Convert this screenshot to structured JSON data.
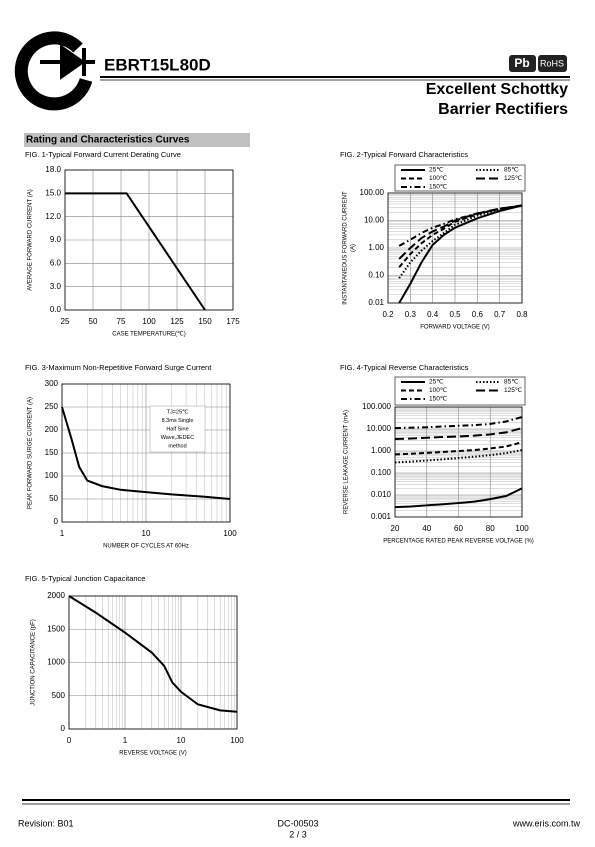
{
  "header": {
    "part_number": "EBRT15L80D",
    "badges": [
      "Pb",
      "RoHS"
    ],
    "title_lines": [
      "Excellent Schottky",
      "Barrier Rectifiers"
    ],
    "section": "Rating and Characteristics Curves"
  },
  "chart_data": [
    {
      "type": "line",
      "title": "FIG. 1-Typical Forward Current Derating Curve",
      "x_label": "CASE TEMPERATURE(℃)",
      "y_label": [
        "AVERAGE FORWARD CURRENT (A)"
      ],
      "grid": true,
      "x": [
        25,
        80,
        150
      ],
      "series": [
        {
          "color": "#000000",
          "dash": "solid",
          "values": [
            15,
            15,
            0
          ]
        }
      ],
      "xlim": [
        25,
        175
      ],
      "xticks": [
        25,
        50,
        75,
        100,
        125,
        150,
        175
      ],
      "ylim": [
        0,
        18
      ],
      "yticks": [
        {
          "value": 0,
          "label": "0.0"
        },
        {
          "value": 3,
          "label": "3.0"
        },
        {
          "value": 6,
          "label": "6.0"
        },
        {
          "value": 9,
          "label": "9.0"
        },
        {
          "value": 12,
          "label": "12.0"
        },
        {
          "value": 15,
          "label": "15.0"
        },
        {
          "value": 18,
          "label": "18.0"
        }
      ]
    },
    {
      "type": "line",
      "title": "FIG. 2-Typical Forward Characteristics",
      "x_label": "FORWARD VOLTAGE (V)",
      "y_label": [
        "INSTANTANEOUS FORWARD CURRENT",
        "(A)"
      ],
      "grid": true,
      "y_log": true,
      "legend": "top",
      "x": [
        0.25,
        0.3,
        0.35,
        0.4,
        0.45,
        0.5,
        0.6,
        0.7,
        0.8
      ],
      "series": [
        {
          "name": "25℃",
          "color": "#000000",
          "dash": "solid",
          "values": [
            0.01,
            0.05,
            0.3,
            1.3,
            3,
            5.5,
            12,
            22,
            35
          ]
        },
        {
          "name": "85℃",
          "color": "#000000",
          "dash": "dotted",
          "values": [
            0.08,
            0.3,
            0.8,
            1.8,
            3.5,
            7,
            15,
            25,
            35
          ]
        },
        {
          "name": "100℃",
          "color": "#000000",
          "dash": "dashed",
          "values": [
            0.2,
            0.6,
            1.5,
            3,
            5,
            9,
            17,
            27,
            35
          ]
        },
        {
          "name": "125℃",
          "color": "#000000",
          "dash": "longdash",
          "values": [
            0.4,
            1,
            2.3,
            4,
            6,
            10,
            18,
            27,
            35
          ]
        },
        {
          "name": "150℃",
          "color": "#000000",
          "dash": "dashdot",
          "values": [
            1.2,
            2,
            3.5,
            5.5,
            7.5,
            11,
            18,
            26,
            35
          ]
        }
      ],
      "xlim": [
        0.2,
        0.8
      ],
      "xticks": [
        0.2,
        0.3,
        0.4,
        0.5,
        0.6,
        0.7,
        0.8
      ],
      "ylim": [
        0.01,
        100
      ],
      "yticks": [
        {
          "value": 0.01,
          "label": "0.01"
        },
        {
          "value": 0.1,
          "label": "0.10"
        },
        {
          "value": 1,
          "label": "1.00"
        },
        {
          "value": 10,
          "label": "10.00"
        },
        {
          "value": 100,
          "label": "100.00"
        }
      ]
    },
    {
      "type": "line",
      "title": "FIG. 3-Maximum Non-Repetitive Forward Surge Current",
      "x_label": "NUMBER OF CYCLES AT 60Hz",
      "y_label": [
        "PEAK FORWARD SURGE CURRENT (A)"
      ],
      "grid": true,
      "x_log": true,
      "annotation": [
        "TJ=25℃",
        "8.3ms Single",
        "Half  Sine",
        "Wave,JEDEC",
        "method"
      ],
      "x": [
        1,
        1.3,
        1.6,
        2,
        3,
        5,
        10,
        20,
        50,
        100
      ],
      "series": [
        {
          "color": "#000000",
          "dash": "solid",
          "values": [
            250,
            180,
            120,
            90,
            78,
            70,
            65,
            60,
            55,
            50
          ]
        }
      ],
      "xlim": [
        1,
        100
      ],
      "xticks": [
        1,
        10,
        100
      ],
      "ylim": [
        0,
        300
      ],
      "yticks": [
        0,
        50,
        100,
        150,
        200,
        250,
        300
      ]
    },
    {
      "type": "line",
      "title": "FIG. 4-Typical Reverse Characteristics",
      "x_label": "PERCENTAGE RATED PEAK REVERSE VOLTAGE (%)",
      "y_label": [
        "REVERSE LEAKAGE CURRENT (mA)"
      ],
      "grid": true,
      "y_log": true,
      "legend": "top",
      "x": [
        20,
        30,
        40,
        50,
        60,
        70,
        80,
        90,
        100
      ],
      "series": [
        {
          "name": "25℃",
          "color": "#000000",
          "dash": "solid",
          "values": [
            0.0028,
            0.003,
            0.0034,
            0.0038,
            0.0043,
            0.005,
            0.0065,
            0.009,
            0.02
          ]
        },
        {
          "name": "85℃",
          "color": "#000000",
          "dash": "dotted",
          "values": [
            0.3,
            0.33,
            0.37,
            0.42,
            0.48,
            0.55,
            0.65,
            0.8,
            1.1
          ]
        },
        {
          "name": "100℃",
          "color": "#000000",
          "dash": "dashed",
          "values": [
            0.7,
            0.75,
            0.82,
            0.9,
            1,
            1.1,
            1.3,
            1.6,
            2.5
          ]
        },
        {
          "name": "125℃",
          "color": "#000000",
          "dash": "longdash",
          "values": [
            3.5,
            3.7,
            4,
            4.3,
            4.6,
            5,
            5.7,
            7,
            11
          ]
        },
        {
          "name": "150℃",
          "color": "#000000",
          "dash": "dashdot",
          "values": [
            11,
            11.5,
            12,
            13,
            14,
            15,
            17,
            22,
            35
          ]
        }
      ],
      "xlim": [
        20,
        100
      ],
      "xticks": [
        20,
        40,
        60,
        80,
        100
      ],
      "ylim": [
        0.001,
        100
      ],
      "yticks": [
        {
          "value": 0.001,
          "label": "0.001"
        },
        {
          "value": 0.01,
          "label": "0.010"
        },
        {
          "value": 0.1,
          "label": "0.100"
        },
        {
          "value": 1,
          "label": "1.000"
        },
        {
          "value": 10,
          "label": "10.000"
        },
        {
          "value": 100,
          "label": "100.000"
        }
      ]
    },
    {
      "type": "line",
      "title": "FIG. 5-Typical Junction Capacitance",
      "x_label": "REVERSE VOLTAGE (V)",
      "y_label": [
        "JUNCTION CAPACITANCE (pF)"
      ],
      "grid": true,
      "x_log": true,
      "x": [
        0.1,
        0.3,
        1,
        3,
        5,
        7,
        10,
        20,
        50,
        100
      ],
      "series": [
        {
          "color": "#000000",
          "dash": "solid",
          "values": [
            2000,
            1750,
            1450,
            1150,
            950,
            700,
            560,
            370,
            280,
            260
          ]
        }
      ],
      "xlim": [
        0.1,
        100
      ],
      "xticks": [
        {
          "value": 0.1,
          "label": "0"
        },
        1,
        10,
        100
      ],
      "ylim": [
        0,
        2000
      ],
      "yticks": [
        0,
        500,
        1000,
        1500,
        2000
      ]
    }
  ],
  "footer": {
    "revision": "Revision: B01",
    "doc_number": "DC-00503",
    "page": "2 / 3",
    "website": "www.eris.com.tw"
  }
}
